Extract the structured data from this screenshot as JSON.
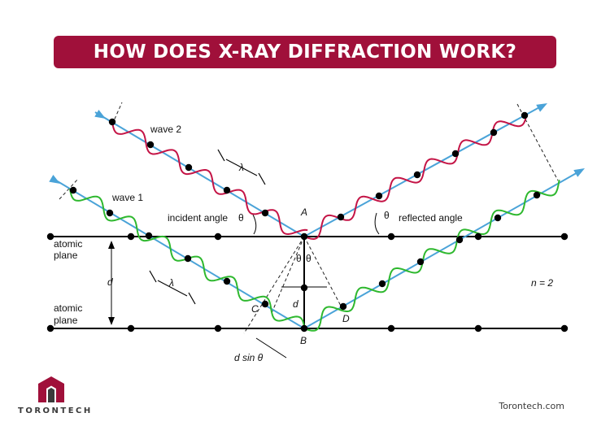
{
  "title": "HOW DOES X-RAY DIFFRACTION WORK?",
  "labels": {
    "wave1": "wave 2",
    "wave2": "wave 1",
    "incident_angle": "incident angle",
    "reflected_angle": "reflected angle",
    "theta": "θ",
    "lambda": "λ",
    "plane_top_1": "atomic",
    "plane_top_2": "plane",
    "plane_bottom_1": "atomic",
    "plane_bottom_2": "plane",
    "d": "d",
    "n_equals": "n = 2",
    "point_a": "A",
    "point_b": "B",
    "point_c": "C",
    "point_d": "D",
    "d_sin_theta": "d sin θ"
  },
  "brand": {
    "name": "TORONTECH",
    "site": "Torontech.com"
  },
  "colors": {
    "title_bg": "#a0103a",
    "beam": "#4aa3d8",
    "wave_red": "#c41446",
    "wave_green": "#2eb82e",
    "atom": "#000000"
  }
}
